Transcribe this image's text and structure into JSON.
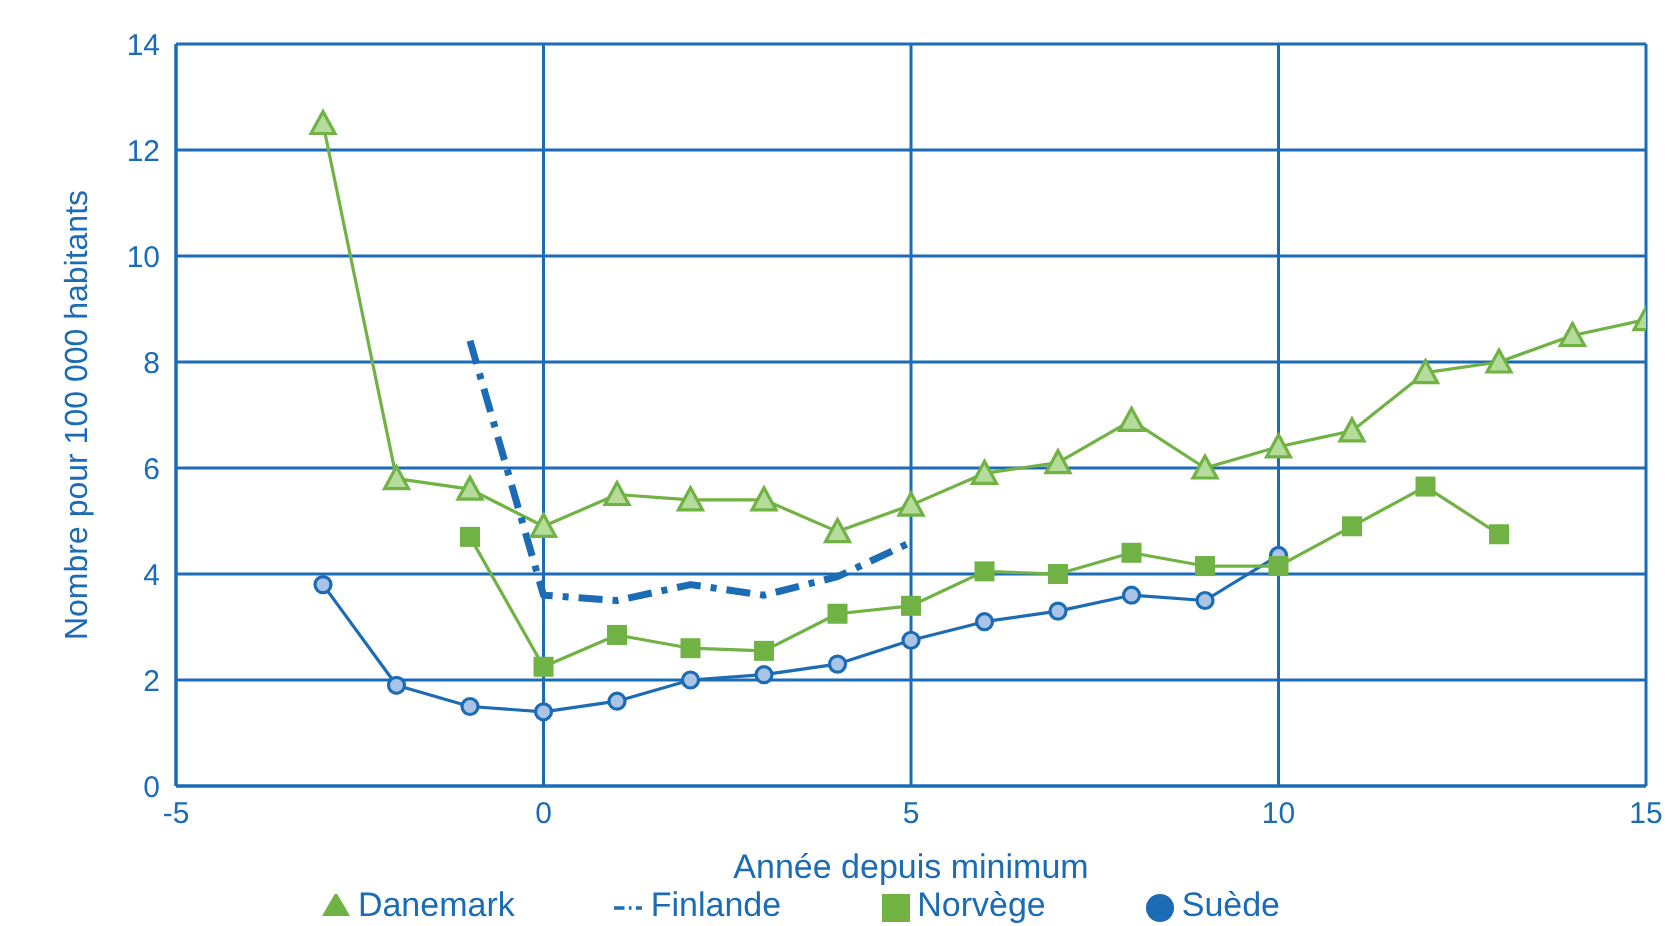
{
  "chart_data": {
    "type": "line",
    "xlabel": "Année depuis minimum",
    "ylabel": "Nombre pour 100 000 habitants",
    "xlim": [
      -5,
      15
    ],
    "xticks": [
      -5,
      0,
      5,
      10,
      15
    ],
    "ylim": [
      0,
      14
    ],
    "yticks": [
      0,
      2,
      4,
      6,
      8,
      10,
      12,
      14
    ],
    "grid": true,
    "legend": "bottom",
    "series": [
      {
        "name": "Danemark",
        "color": "#70b244",
        "marker": "triangle",
        "line_style": "solid",
        "x": [
          -3,
          -2,
          -1,
          0,
          1,
          2,
          3,
          4,
          5,
          6,
          7,
          8,
          9,
          10,
          11,
          12,
          13,
          14,
          15
        ],
        "values": [
          12.5,
          5.8,
          5.6,
          4.9,
          5.5,
          5.4,
          5.4,
          4.8,
          5.3,
          5.9,
          6.1,
          6.9,
          6.0,
          6.4,
          6.7,
          7.8,
          8.0,
          8.5,
          8.8
        ]
      },
      {
        "name": "Suède",
        "color": "#1c6bb5",
        "marker": "circle",
        "line_style": "solid",
        "x": [
          -3,
          -2,
          -1,
          0,
          1,
          2,
          3,
          4,
          5,
          6,
          7,
          8,
          9,
          10
        ],
        "values": [
          3.8,
          1.9,
          1.5,
          1.4,
          1.6,
          2.0,
          2.1,
          2.3,
          2.75,
          3.1,
          3.3,
          3.6,
          3.5,
          4.35
        ]
      },
      {
        "name": "Norvège",
        "color": "#70b244",
        "marker": "square",
        "line_style": "solid",
        "x": [
          -1,
          0,
          1,
          2,
          3,
          4,
          5,
          6,
          7,
          8,
          9,
          10,
          11,
          12,
          13
        ],
        "values": [
          4.7,
          2.25,
          2.85,
          2.6,
          2.55,
          3.25,
          3.4,
          4.05,
          4.0,
          4.4,
          4.15,
          4.15,
          4.9,
          5.65,
          4.75
        ]
      },
      {
        "name": "Finlande",
        "color": "#1c6bb5",
        "marker": "none",
        "line_style": "dashdot",
        "x": [
          -1,
          0,
          1,
          2,
          3,
          4,
          5
        ],
        "values": [
          8.4,
          3.6,
          3.5,
          3.8,
          3.6,
          3.95,
          4.6
        ]
      }
    ]
  }
}
